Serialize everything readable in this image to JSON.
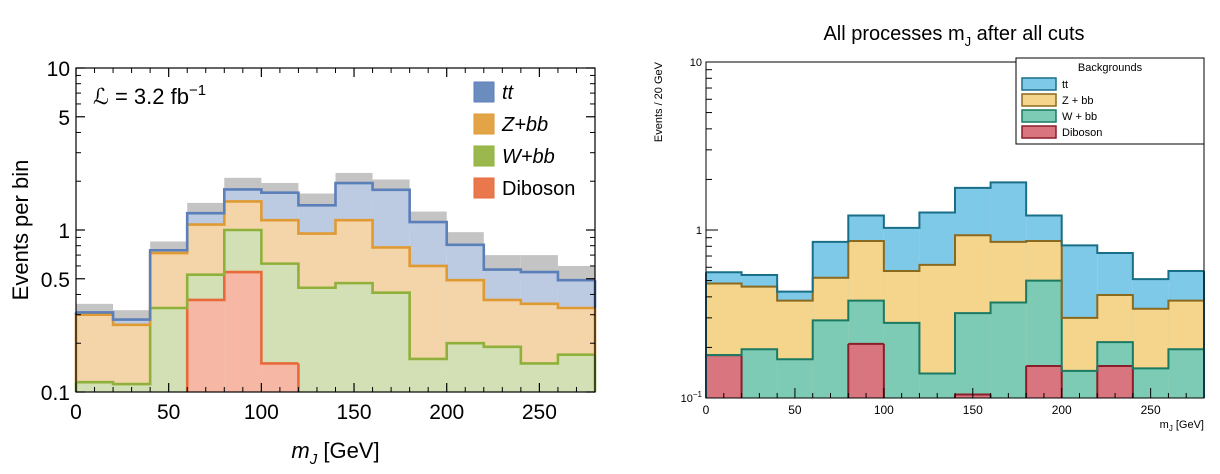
{
  "chart_data": [
    {
      "type": "area",
      "title": "",
      "xlabel": "m",
      "xlabel_sub": "J",
      "xlabel_unit": " [GeV]",
      "ylabel": "Events per bin",
      "ylog": true,
      "xlim": [
        0,
        280
      ],
      "ylim": [
        0.1,
        10
      ],
      "xticks": [
        "0",
        "50",
        "100",
        "150",
        "200",
        "250"
      ],
      "yticks": [
        "0.1",
        "0.5",
        "1",
        "5",
        "10"
      ],
      "annotation": {
        "prefix": "ℒ = 3.2 fb",
        "sup": "−1"
      },
      "legend_position": "top-right",
      "bin_edges": [
        0,
        20,
        40,
        60,
        80,
        100,
        120,
        140,
        160,
        180,
        200,
        220,
        240,
        260,
        280
      ],
      "stacked_totals": true,
      "series": [
        {
          "name": "Diboson",
          "color": "#e8693a",
          "fill": "#f6b8a4",
          "values": [
            0,
            0,
            0,
            0.37,
            0.55,
            0.15,
            0,
            0,
            0,
            0,
            0,
            0,
            0,
            0
          ]
        },
        {
          "name": "W+bb",
          "color": "#8fb03b",
          "fill": "#d3e0b5",
          "values": [
            0.115,
            0.112,
            0.33,
            0.53,
            1.0,
            0.62,
            0.44,
            0.47,
            0.41,
            0.16,
            0.2,
            0.19,
            0.15,
            0.17
          ]
        },
        {
          "name": "Z+bb",
          "color": "#e09a33",
          "fill": "#f3d5a9",
          "values": [
            0.3,
            0.26,
            0.72,
            1.08,
            1.5,
            1.15,
            0.95,
            1.15,
            0.78,
            0.6,
            0.49,
            0.37,
            0.35,
            0.33
          ]
        },
        {
          "name": "tt",
          "color": "#5b7fb8",
          "fill": "#bccbe2",
          "values": [
            0.31,
            0.28,
            0.75,
            1.27,
            1.78,
            1.7,
            1.42,
            1.95,
            1.77,
            1.12,
            0.81,
            0.57,
            0.55,
            0.49
          ]
        }
      ],
      "uncertainty": {
        "color": "#c4c4c4",
        "low": [
          0.29,
          0.25,
          0.63,
          1.12,
          1.58,
          1.47,
          1.25,
          1.7,
          1.52,
          0.98,
          0.7,
          0.49,
          0.45,
          0.41
        ],
        "high": [
          0.35,
          0.32,
          0.85,
          1.47,
          2.1,
          1.95,
          1.68,
          2.25,
          2.05,
          1.3,
          0.97,
          0.7,
          0.7,
          0.6
        ]
      }
    },
    {
      "type": "area",
      "title": "All processes m",
      "title_sub": "J",
      "title_suffix": " after all cuts",
      "xlabel": "m",
      "xlabel_sub": "J",
      "xlabel_unit": " [GeV]",
      "ylabel": "Events / 20 GeV",
      "ylog": true,
      "xlim": [
        0,
        280
      ],
      "ylim": [
        0.1,
        10
      ],
      "xticks": [
        "0",
        "50",
        "100",
        "150",
        "200",
        "250"
      ],
      "yticks": [
        {
          "base": "10",
          "exp": "−1"
        },
        {
          "base": "1",
          "exp": ""
        },
        {
          "base": "10",
          "exp": ""
        }
      ],
      "legend_title": "Backgrounds",
      "legend_position": "top-right",
      "bin_edges": [
        0,
        20,
        40,
        60,
        80,
        100,
        120,
        140,
        160,
        180,
        200,
        220,
        240,
        260,
        280
      ],
      "stacked_totals": true,
      "series": [
        {
          "name": "Diboson",
          "color": "#8a1f2c",
          "fill": "#d9757e",
          "values": [
            0.18,
            0,
            0,
            0,
            0.21,
            0,
            0,
            0.105,
            0,
            0.155,
            0,
            0.155,
            0,
            0
          ]
        },
        {
          "name": "W + bb",
          "color": "#1a7a62",
          "fill": "#7ecbb5",
          "values": [
            0.18,
            0.195,
            0.17,
            0.29,
            0.38,
            0.28,
            0.14,
            0.32,
            0.37,
            0.5,
            0.145,
            0.215,
            0.15,
            0.195
          ]
        },
        {
          "name": "Z + bb",
          "color": "#8a6a1e",
          "fill": "#f5d58b",
          "values": [
            0.48,
            0.46,
            0.38,
            0.52,
            0.86,
            0.57,
            0.62,
            0.93,
            0.85,
            0.86,
            0.3,
            0.41,
            0.34,
            0.38
          ]
        },
        {
          "name": "tt",
          "color": "#1a6f88",
          "fill": "#7ec8e8",
          "values": [
            0.56,
            0.54,
            0.43,
            0.85,
            1.22,
            1.03,
            1.27,
            1.78,
            1.92,
            1.22,
            0.81,
            0.73,
            0.51,
            0.57
          ]
        }
      ]
    }
  ]
}
